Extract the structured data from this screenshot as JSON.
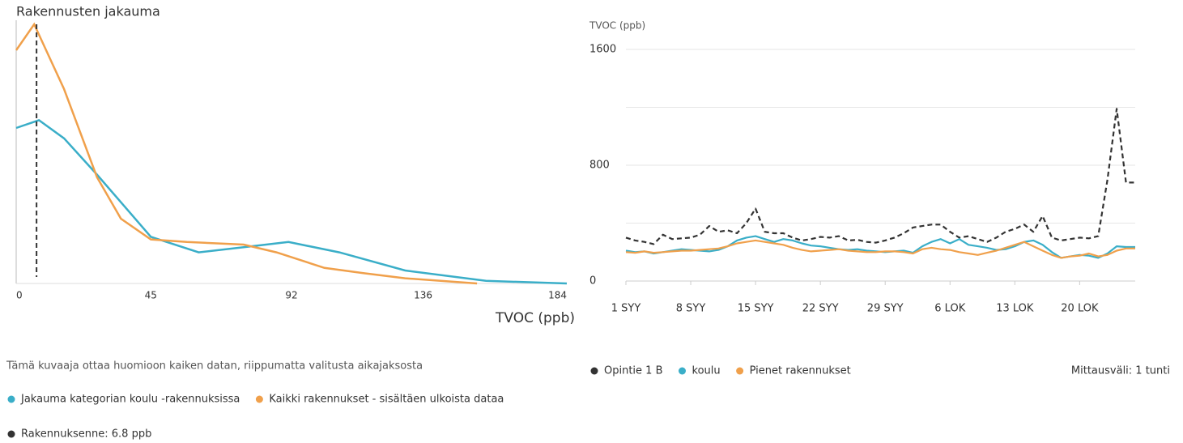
{
  "chart_data": [
    {
      "type": "line",
      "title": "Rakennusten jakauma",
      "xlabel": "TVOC (ppb)",
      "xlim": [
        0,
        184
      ],
      "xticks": [
        0,
        45,
        92,
        136,
        184
      ],
      "ylim": [
        0,
        100
      ],
      "series": [
        {
          "name": "Jakauma kategorian koulu -rakennuksissa",
          "color": "#3aaec8",
          "x": [
            0,
            7.6,
            16,
            27,
            45,
            61,
            76,
            91,
            108,
            130,
            157,
            184
          ],
          "values": [
            60,
            63,
            56,
            42,
            18,
            12,
            14,
            16,
            12,
            5,
            1,
            0
          ]
        },
        {
          "name": "Kaikki rakennukset - sisältäen ulkoista dataa",
          "color": "#f0a04b",
          "x": [
            0,
            6,
            16,
            27,
            35,
            45,
            57,
            76,
            87,
            103,
            116,
            130,
            154
          ],
          "values": [
            90,
            100,
            75,
            41,
            25,
            17,
            16,
            15,
            12,
            6,
            4,
            2,
            0
          ]
        }
      ],
      "marker": {
        "label": "Rakennuksenne: 6.8 ppb",
        "value": 6.8,
        "color": "#333333"
      },
      "note": "Tämä kuvaaja ottaa huomioon kaiken datan, riippumatta valitusta aikajaksosta"
    },
    {
      "type": "line",
      "ylabel": "TVOC (ppb)",
      "ylim": [
        0,
        1600
      ],
      "yticks": [
        0,
        800,
        1600
      ],
      "minor_grid": [
        400,
        1200
      ],
      "categories": [
        "1 SYY",
        null,
        null,
        null,
        null,
        null,
        null,
        "8 SYY",
        null,
        null,
        null,
        null,
        null,
        null,
        "15 SYY",
        null,
        null,
        null,
        null,
        null,
        null,
        "22 SYY",
        null,
        null,
        null,
        null,
        null,
        null,
        "29 SYY",
        null,
        null,
        null,
        null,
        null,
        null,
        "6 LOK",
        null,
        null,
        null,
        null,
        null,
        null,
        "13 LOK",
        null,
        null,
        null,
        null,
        null,
        null,
        "20 LOK",
        null,
        null,
        null,
        null,
        null,
        null
      ],
      "series": [
        {
          "name": "Opintie 1 B",
          "color": "#333333",
          "dashed": true,
          "values": [
            300,
            280,
            270,
            255,
            320,
            290,
            295,
            300,
            320,
            380,
            340,
            350,
            330,
            400,
            500,
            340,
            330,
            330,
            300,
            280,
            290,
            305,
            300,
            310,
            280,
            285,
            270,
            265,
            280,
            300,
            330,
            370,
            380,
            390,
            390,
            340,
            300,
            310,
            290,
            270,
            300,
            340,
            360,
            390,
            340,
            450,
            300,
            280,
            290,
            300,
            295,
            310,
            700,
            1190,
            680,
            680
          ]
        },
        {
          "name": "koulu",
          "color": "#3aaec8",
          "values": [
            210,
            200,
            205,
            190,
            200,
            210,
            220,
            215,
            210,
            205,
            215,
            240,
            280,
            300,
            310,
            290,
            270,
            290,
            280,
            260,
            245,
            240,
            230,
            220,
            215,
            220,
            210,
            205,
            200,
            205,
            210,
            195,
            240,
            270,
            290,
            260,
            290,
            250,
            240,
            230,
            215,
            220,
            240,
            270,
            280,
            250,
            200,
            160,
            170,
            180,
            175,
            160,
            190,
            240,
            235,
            235
          ]
        },
        {
          "name": "Pienet rakennukset",
          "color": "#f0a04b",
          "values": [
            200,
            195,
            205,
            195,
            200,
            205,
            210,
            210,
            215,
            220,
            225,
            240,
            260,
            270,
            280,
            270,
            260,
            250,
            230,
            215,
            205,
            210,
            215,
            220,
            210,
            205,
            200,
            200,
            205,
            205,
            200,
            190,
            220,
            230,
            220,
            215,
            200,
            190,
            180,
            195,
            210,
            230,
            250,
            270,
            240,
            210,
            180,
            160,
            170,
            175,
            190,
            170,
            180,
            210,
            225,
            225
          ]
        }
      ],
      "interval_label": "Mittausväli: 1 tunti"
    }
  ]
}
